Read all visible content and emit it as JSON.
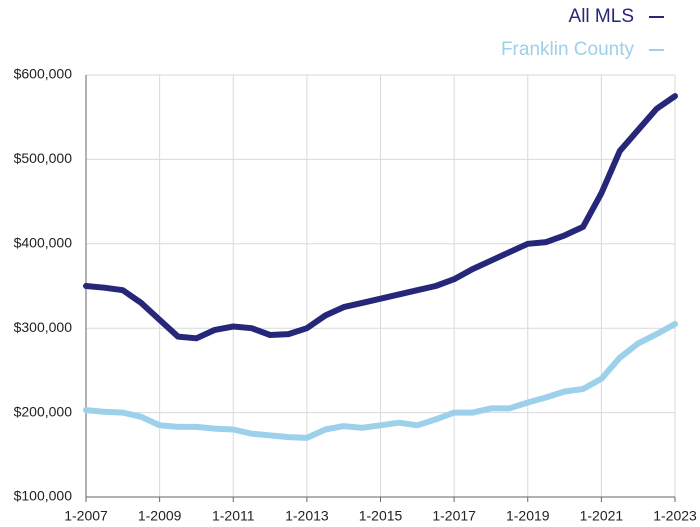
{
  "chart_data": {
    "type": "line",
    "x": [
      2007,
      2007.5,
      2008,
      2008.5,
      2009,
      2009.5,
      2010,
      2010.5,
      2011,
      2011.5,
      2012,
      2012.5,
      2013,
      2013.5,
      2014,
      2014.5,
      2015,
      2015.5,
      2016,
      2016.5,
      2017,
      2017.5,
      2018,
      2018.5,
      2019,
      2019.5,
      2020,
      2020.5,
      2021,
      2021.5,
      2022,
      2022.5,
      2023
    ],
    "series": [
      {
        "name": "All MLS",
        "color": "#27277a",
        "values": [
          350000,
          348000,
          345000,
          330000,
          310000,
          290000,
          288000,
          298000,
          302000,
          300000,
          292000,
          293000,
          300000,
          315000,
          325000,
          330000,
          335000,
          340000,
          345000,
          350000,
          358000,
          370000,
          380000,
          390000,
          400000,
          402000,
          410000,
          420000,
          460000,
          510000,
          535000,
          560000,
          575000
        ]
      },
      {
        "name": "Franklin County",
        "color": "#9dd0ea",
        "values": [
          203000,
          201000,
          200000,
          195000,
          185000,
          183000,
          183000,
          181000,
          180000,
          175000,
          173000,
          171000,
          170000,
          180000,
          184000,
          182000,
          185000,
          188000,
          185000,
          192000,
          200000,
          200000,
          205000,
          205000,
          212000,
          218000,
          225000,
          228000,
          240000,
          265000,
          282000,
          293000,
          305000
        ]
      }
    ],
    "xlim": [
      2007,
      2023
    ],
    "xticks": [
      {
        "value": 2007,
        "label": "1-2007"
      },
      {
        "value": 2009,
        "label": "1-2009"
      },
      {
        "value": 2011,
        "label": "1-2011"
      },
      {
        "value": 2013,
        "label": "1-2013"
      },
      {
        "value": 2015,
        "label": "1-2015"
      },
      {
        "value": 2017,
        "label": "1-2017"
      },
      {
        "value": 2019,
        "label": "1-2019"
      },
      {
        "value": 2021,
        "label": "1-2021"
      },
      {
        "value": 2023,
        "label": "1-2023"
      }
    ],
    "ylim": [
      100000,
      600000
    ],
    "yticks": [
      {
        "value": 100000,
        "label": "$100,000"
      },
      {
        "value": 200000,
        "label": "$200,000"
      },
      {
        "value": 300000,
        "label": "$300,000"
      },
      {
        "value": 400000,
        "label": "$400,000"
      },
      {
        "value": 500000,
        "label": "$500,000"
      },
      {
        "value": 600000,
        "label": "$600,000"
      }
    ],
    "grid": true,
    "legend": "top-right"
  }
}
